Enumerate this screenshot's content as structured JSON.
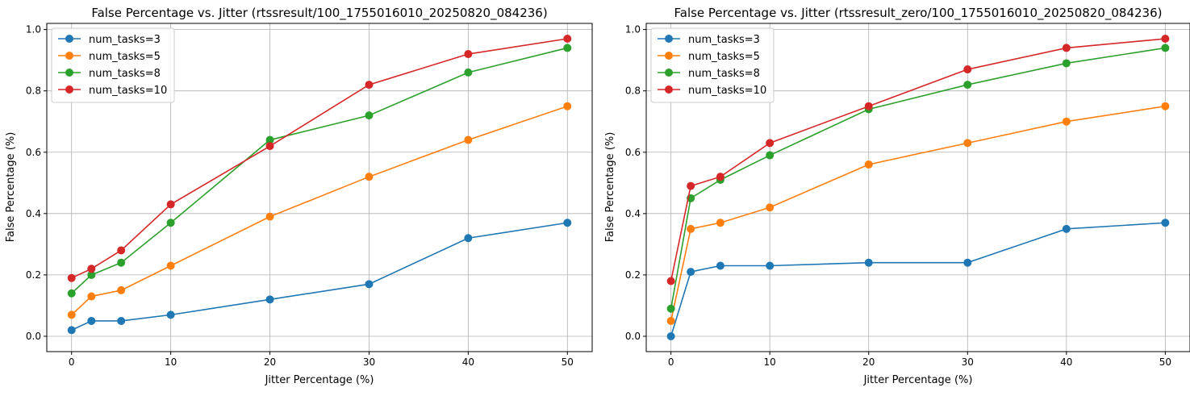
{
  "chart_data": [
    {
      "type": "line",
      "title": "False Percentage vs. Jitter (rtssresult/100_1755016010_20250820_084236)",
      "xlabel": "Jitter Percentage (%)",
      "ylabel": "False Percentage (%)",
      "x": [
        0,
        2,
        5,
        10,
        20,
        30,
        40,
        50
      ],
      "xlim": [
        -2.5,
        52.5
      ],
      "ylim": [
        -0.05,
        1.02
      ],
      "xticks": [
        "0",
        "10",
        "20",
        "30",
        "40",
        "50"
      ],
      "yticks": [
        "0.0",
        "0.2",
        "0.4",
        "0.6",
        "0.8",
        "1.0"
      ],
      "grid": true,
      "legend_position": "upper-left",
      "series": [
        {
          "name": "num_tasks=3",
          "color": "#1f77b4",
          "values": [
            0.02,
            0.05,
            0.05,
            0.07,
            0.12,
            0.17,
            0.32,
            0.37
          ]
        },
        {
          "name": "num_tasks=5",
          "color": "#ff7f0e",
          "values": [
            0.07,
            0.13,
            0.15,
            0.23,
            0.39,
            0.52,
            0.64,
            0.75
          ]
        },
        {
          "name": "num_tasks=8",
          "color": "#2ca02c",
          "values": [
            0.14,
            0.2,
            0.24,
            0.37,
            0.64,
            0.72,
            0.86,
            0.94
          ]
        },
        {
          "name": "num_tasks=10",
          "color": "#d62728",
          "values": [
            0.19,
            0.22,
            0.28,
            0.43,
            0.62,
            0.82,
            0.92,
            0.97
          ]
        }
      ]
    },
    {
      "type": "line",
      "title": "False Percentage vs. Jitter (rtssresult_zero/100_1755016010_20250820_084236)",
      "xlabel": "Jitter Percentage (%)",
      "ylabel": "False Percentage (%)",
      "x": [
        0,
        2,
        5,
        10,
        20,
        30,
        40,
        50
      ],
      "xlim": [
        -2.5,
        52.5
      ],
      "ylim": [
        -0.05,
        1.02
      ],
      "xticks": [
        "0",
        "10",
        "20",
        "30",
        "40",
        "50"
      ],
      "yticks": [
        "0.0",
        "0.2",
        "0.4",
        "0.6",
        "0.8",
        "1.0"
      ],
      "grid": true,
      "legend_position": "upper-left",
      "series": [
        {
          "name": "num_tasks=3",
          "color": "#1f77b4",
          "values": [
            0.0,
            0.21,
            0.23,
            0.23,
            0.24,
            0.24,
            0.35,
            0.37
          ]
        },
        {
          "name": "num_tasks=5",
          "color": "#ff7f0e",
          "values": [
            0.05,
            0.35,
            0.37,
            0.42,
            0.56,
            0.63,
            0.7,
            0.75
          ]
        },
        {
          "name": "num_tasks=8",
          "color": "#2ca02c",
          "values": [
            0.09,
            0.45,
            0.51,
            0.59,
            0.74,
            0.82,
            0.89,
            0.94
          ]
        },
        {
          "name": "num_tasks=10",
          "color": "#d62728",
          "values": [
            0.18,
            0.49,
            0.52,
            0.63,
            0.75,
            0.87,
            0.94,
            0.97
          ]
        }
      ]
    }
  ]
}
